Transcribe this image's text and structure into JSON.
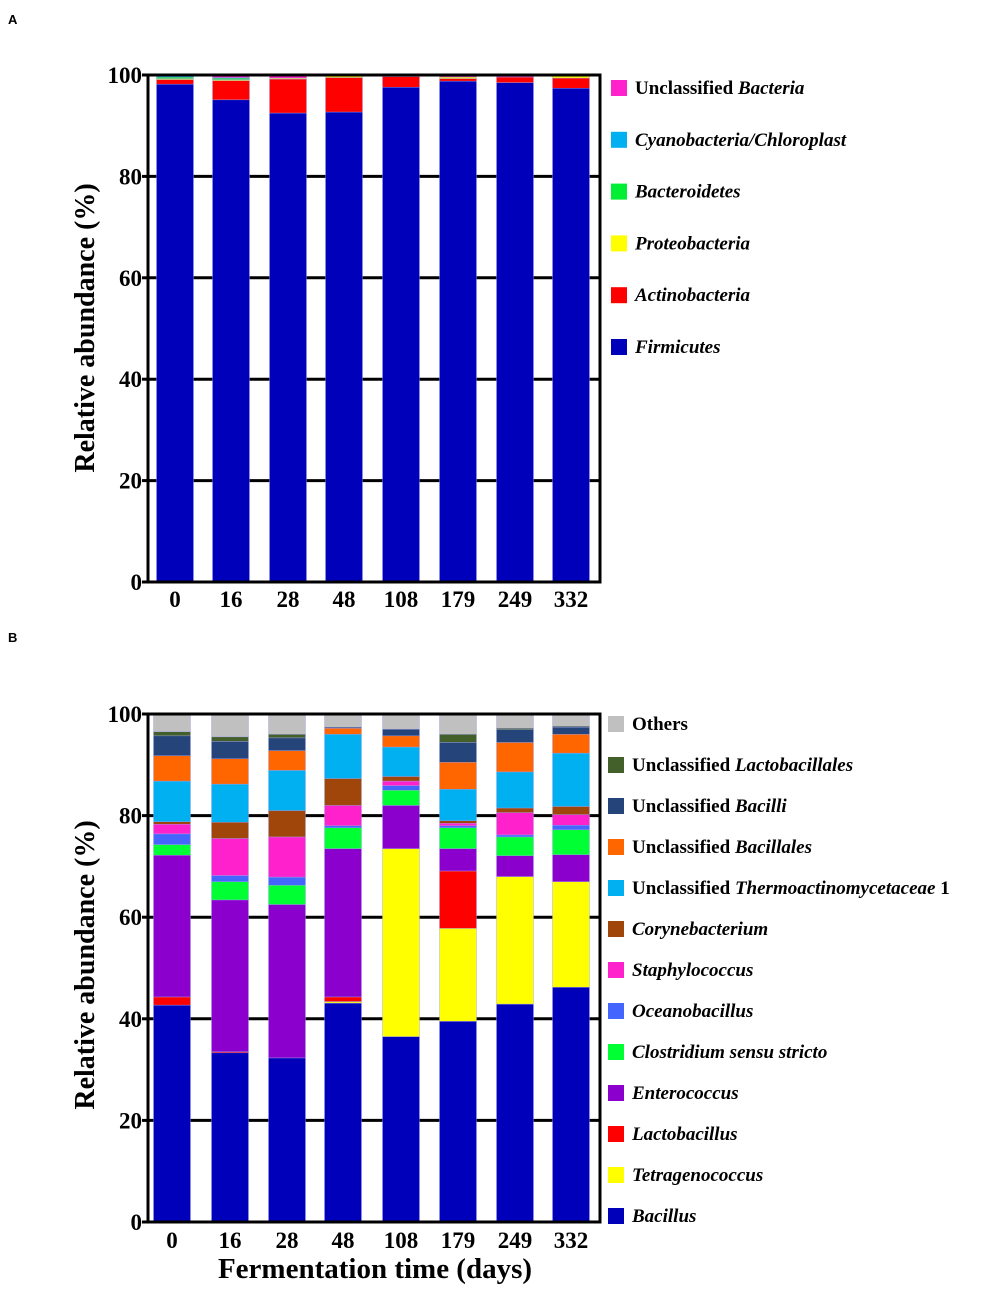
{
  "chart_data": [
    {
      "panel": "A",
      "type": "bar",
      "stacked": true,
      "title": "",
      "xlabel": "",
      "ylabel": "Relative abundance (%)",
      "ylim": [
        0,
        100
      ],
      "yticks": [
        0,
        20,
        40,
        60,
        80,
        100
      ],
      "grid": true,
      "legend_position": "right",
      "categories": [
        "0",
        "16",
        "28",
        "48",
        "108",
        "179",
        "249",
        "332"
      ],
      "series": [
        {
          "name": "Firmicutes",
          "label": {
            "pre": "",
            "it": "Firmicutes",
            "post": ""
          },
          "color": "#0000bb",
          "values": [
            98.2,
            95.1,
            92.5,
            92.7,
            97.6,
            98.8,
            98.5,
            97.4
          ]
        },
        {
          "name": "Actinobacteria",
          "label": {
            "pre": "",
            "it": "Actinobacteria",
            "post": ""
          },
          "color": "#ff0000",
          "values": [
            0.9,
            3.8,
            6.7,
            6.8,
            2.1,
            0.5,
            1.1,
            2.0
          ]
        },
        {
          "name": "Proteobacteria",
          "label": {
            "pre": "",
            "it": "Proteobacteria",
            "post": ""
          },
          "color": "#ffff00",
          "values": [
            0.2,
            0.2,
            0.2,
            0.5,
            0.0,
            0.3,
            0.0,
            0.4
          ]
        },
        {
          "name": "Bacteroidetes",
          "label": {
            "pre": "",
            "it": "Bacteroidetes",
            "post": ""
          },
          "color": "#00ee33",
          "values": [
            0.3,
            0.3,
            0.0,
            0.0,
            0.0,
            0.0,
            0.0,
            0.0
          ]
        },
        {
          "name": "Cyanobacteria/Chloroplast",
          "label": {
            "pre": "",
            "it": "Cyanobacteria/Chloroplast",
            "post": ""
          },
          "color": "#00b0f0",
          "values": [
            0.2,
            0.1,
            0.0,
            0.0,
            0.0,
            0.0,
            0.0,
            0.0
          ]
        },
        {
          "name": "Unclassified Bacteria",
          "label": {
            "pre": "Unclassified ",
            "it": "Bacteria",
            "post": ""
          },
          "color": "#ff22cc",
          "values": [
            0.2,
            0.5,
            0.6,
            0.0,
            0.3,
            0.4,
            0.4,
            0.2
          ]
        }
      ]
    },
    {
      "panel": "B",
      "type": "bar",
      "stacked": true,
      "title": "",
      "xlabel": "Fermentation time (days)",
      "ylabel": "Relative abundance (%)",
      "ylim": [
        0,
        100
      ],
      "yticks": [
        0,
        20,
        40,
        60,
        80,
        100
      ],
      "grid": true,
      "legend_position": "right",
      "categories": [
        "0",
        "16",
        "28",
        "48",
        "108",
        "179",
        "249",
        "332"
      ],
      "series": [
        {
          "name": "Bacillus",
          "label": {
            "pre": "",
            "it": "Bacillus",
            "post": ""
          },
          "color": "#0000bb",
          "values": [
            42.7,
            33.3,
            32.3,
            43.1,
            36.5,
            39.5,
            42.9,
            46.2
          ]
        },
        {
          "name": "Tetragenococcus",
          "label": {
            "pre": "",
            "it": "Tetragenococcus",
            "post": ""
          },
          "color": "#ffff00",
          "values": [
            0.0,
            0.0,
            0.0,
            0.3,
            37.0,
            18.3,
            25.1,
            20.8
          ]
        },
        {
          "name": "Lactobacillus",
          "label": {
            "pre": "",
            "it": "Lactobacillus",
            "post": ""
          },
          "color": "#ff0000",
          "values": [
            1.6,
            0.2,
            0.0,
            0.9,
            0.0,
            11.3,
            0.0,
            0.0
          ]
        },
        {
          "name": "Enterococcus",
          "label": {
            "pre": "",
            "it": "Enterococcus",
            "post": ""
          },
          "color": "#8b00cc",
          "values": [
            27.9,
            29.9,
            30.2,
            29.2,
            8.5,
            4.4,
            4.1,
            5.3
          ]
        },
        {
          "name": "Clostridium sensu stricto",
          "label": {
            "pre": "",
            "it": "Clostridium sensu stricto",
            "post": ""
          },
          "color": "#00ff33",
          "values": [
            2.1,
            3.6,
            3.8,
            4.1,
            3.0,
            4.1,
            3.7,
            4.9
          ]
        },
        {
          "name": "Oceanobacillus",
          "label": {
            "pre": "",
            "it": "Oceanobacillus",
            "post": ""
          },
          "color": "#4466ff",
          "values": [
            2.1,
            1.2,
            1.6,
            0.4,
            0.9,
            0.4,
            0.4,
            0.9
          ]
        },
        {
          "name": "Staphylococcus",
          "label": {
            "pre": "",
            "it": "Staphylococcus",
            "post": ""
          },
          "color": "#ff22cc",
          "values": [
            1.9,
            7.3,
            7.9,
            4.0,
            0.9,
            0.5,
            4.4,
            2.1
          ]
        },
        {
          "name": "Corynebacterium",
          "label": {
            "pre": "",
            "it": "Corynebacterium",
            "post": ""
          },
          "color": "#a0460a",
          "values": [
            0.5,
            3.2,
            5.2,
            5.3,
            0.9,
            0.5,
            0.9,
            1.6
          ]
        },
        {
          "name": "Unclassified Thermoactinomycetaceae 1",
          "label": {
            "pre": "Unclassified ",
            "it": "Thermoactinomycetaceae",
            "post": " 1"
          },
          "color": "#00b0f0",
          "values": [
            8.0,
            7.5,
            7.9,
            8.7,
            5.8,
            6.2,
            7.1,
            10.5
          ]
        },
        {
          "name": "Unclassified Bacillales",
          "label": {
            "pre": "Unclassified ",
            "it": "Bacillales",
            "post": ""
          },
          "color": "#ff6600",
          "values": [
            5.0,
            5.0,
            3.9,
            1.2,
            2.2,
            5.3,
            5.8,
            3.7
          ]
        },
        {
          "name": "Unclassified Bacilli",
          "label": {
            "pre": "Unclassified ",
            "it": "Bacilli",
            "post": ""
          },
          "color": "#24447a",
          "values": [
            3.9,
            3.4,
            2.5,
            0.2,
            1.3,
            3.9,
            2.5,
            1.4
          ]
        },
        {
          "name": "Unclassified Lactobacillales",
          "label": {
            "pre": "Unclassified ",
            "it": "Lactobacillales",
            "post": ""
          },
          "color": "#44602a",
          "values": [
            0.8,
            0.9,
            0.7,
            0.0,
            0.0,
            1.6,
            0.3,
            0.2
          ]
        },
        {
          "name": "Others",
          "label": {
            "pre": "Others",
            "it": "",
            "post": ""
          },
          "color": "#c0c0c0",
          "values": [
            3.5,
            4.5,
            4.0,
            2.6,
            3.0,
            4.0,
            2.8,
            2.4
          ]
        }
      ]
    }
  ]
}
